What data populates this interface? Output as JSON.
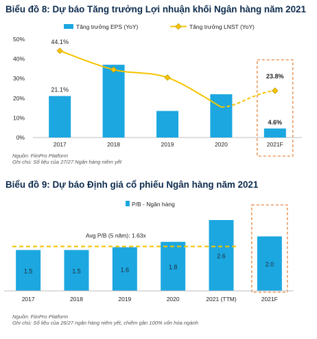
{
  "charts": [
    {
      "title": "Biểu đồ 8: Dự báo Tăng trưởng Lợi nhuận khối Ngân hàng năm 2021",
      "source": "Nguồn: FiinPro Platform",
      "note": "Ghi chú: Số liệu của 27/27 Ngân hàng niêm yết"
    },
    {
      "title": "Biểu đồ 9: Dự báo Định giá cổ phiếu Ngân hàng năm 2021",
      "source": "Nguồn: FiinPro Platform",
      "note": "Ghi chú: Số liệu của 26/27 ngân hàng niêm yết, chiếm gần 100% vốn hóa ngành"
    }
  ],
  "chart_data": [
    {
      "type": "bar",
      "title": "Biểu đồ 8: Dự báo Tăng trưởng Lợi nhuận khối Ngân hàng năm 2021",
      "categories": [
        "2017",
        "2018",
        "2019",
        "2020",
        "2021F"
      ],
      "ylim": [
        0,
        50
      ],
      "yticks": [
        0,
        10,
        20,
        30,
        40,
        50
      ],
      "ytick_labels": [
        "0%",
        "10%",
        "20%",
        "30%",
        "40%",
        "50%"
      ],
      "grid": false,
      "legend_position": "top",
      "highlight_category": "2021F",
      "series": [
        {
          "name": "Tăng trưởng EPS (YoY)",
          "type": "bar",
          "color": "#1ca7e0",
          "values": [
            21.1,
            37.0,
            13.5,
            22.0,
            4.6
          ],
          "labels": [
            "21.1%",
            "",
            "",
            "",
            "4.6%"
          ]
        },
        {
          "name": "Tăng trưởng LNST (YoY)",
          "type": "line",
          "color": "#f5c400",
          "marker": "diamond",
          "forecast_dashed_from": "2020",
          "values": [
            44.1,
            34.5,
            30.5,
            15.5,
            23.8
          ],
          "labels": [
            "44.1%",
            "",
            "",
            "",
            "23.8%"
          ]
        }
      ]
    },
    {
      "type": "bar",
      "title": "Biểu đồ 9: Dự báo Định giá cổ phiếu Ngân hàng năm 2021",
      "categories": [
        "2017",
        "2018",
        "2019",
        "2020",
        "2021 (TTM)",
        "2021F"
      ],
      "ylim": [
        0,
        3
      ],
      "grid": false,
      "legend_position": "top",
      "highlight_category": "2021F",
      "series": [
        {
          "name": "P/B - Ngân hàng",
          "type": "bar",
          "color": "#1ca7e0",
          "values": [
            1.5,
            1.5,
            1.6,
            1.8,
            2.6,
            2.0
          ],
          "labels": [
            "1.5",
            "1.5",
            "1.6",
            "1.8",
            "2.6",
            "2.0"
          ]
        }
      ],
      "reference_line": {
        "label": "Avg P/B (5 năm): 1.63x",
        "value": 1.63,
        "color": "#f5c400",
        "style": "dashed"
      }
    }
  ]
}
